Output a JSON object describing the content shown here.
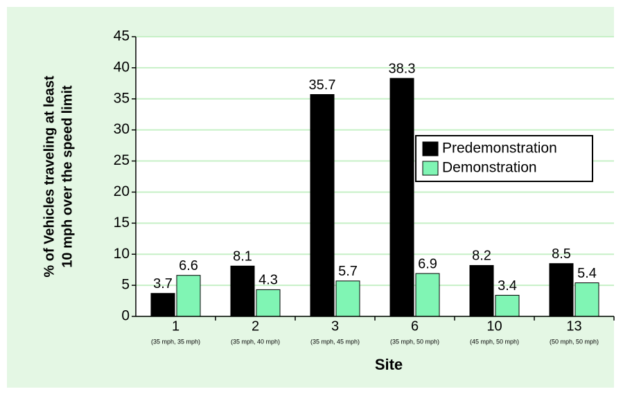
{
  "chart_data": {
    "type": "bar",
    "ylabel": [
      "% of Vehicles traveling at least",
      "10 mph over the speed limit"
    ],
    "xlabel": "Site",
    "categories": [
      "1",
      "2",
      "3",
      "6",
      "10",
      "13"
    ],
    "category_notes": [
      "(35 mph, 35 mph)",
      "(35 mph, 40 mph)",
      "(35 mph, 45 mph)",
      "(35 mph, 50 mph)",
      "(45 mph, 50 mph)",
      "(50 mph, 50 mph)"
    ],
    "series": [
      {
        "name": "Predemonstration",
        "color": "#000000",
        "values": [
          3.7,
          8.1,
          35.7,
          38.3,
          8.2,
          8.5
        ]
      },
      {
        "name": "Demonstration",
        "color": "#80f5b4",
        "values": [
          6.6,
          4.3,
          5.7,
          6.9,
          3.4,
          5.4
        ]
      }
    ],
    "ylim": [
      0,
      45
    ],
    "yticks": [
      0,
      5,
      10,
      15,
      20,
      25,
      30,
      35,
      40,
      45
    ],
    "grid": true,
    "legend": "right"
  }
}
